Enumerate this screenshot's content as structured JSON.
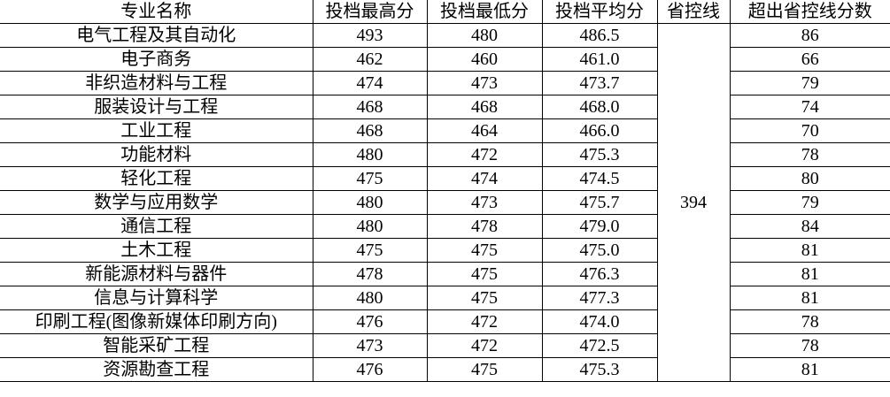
{
  "headers": [
    "专业名称",
    "投档最高分",
    "投档最低分",
    "投档平均分",
    "省控线",
    "超出省控线分数"
  ],
  "province_line": "394",
  "rows": [
    {
      "major": "电气工程及其自动化",
      "max": "493",
      "min": "480",
      "avg": "486.5",
      "over": "86"
    },
    {
      "major": "电子商务",
      "max": "462",
      "min": "460",
      "avg": "461.0",
      "over": "66"
    },
    {
      "major": "非织造材料与工程",
      "max": "474",
      "min": "473",
      "avg": "473.7",
      "over": "79"
    },
    {
      "major": "服装设计与工程",
      "max": "468",
      "min": "468",
      "avg": "468.0",
      "over": "74"
    },
    {
      "major": "工业工程",
      "max": "468",
      "min": "464",
      "avg": "466.0",
      "over": "70"
    },
    {
      "major": "功能材料",
      "max": "480",
      "min": "472",
      "avg": "475.3",
      "over": "78"
    },
    {
      "major": "轻化工程",
      "max": "475",
      "min": "474",
      "avg": "474.5",
      "over": "80"
    },
    {
      "major": "数学与应用数学",
      "max": "480",
      "min": "473",
      "avg": "475.7",
      "over": "79"
    },
    {
      "major": "通信工程",
      "max": "480",
      "min": "478",
      "avg": "479.0",
      "over": "84"
    },
    {
      "major": "土木工程",
      "max": "475",
      "min": "475",
      "avg": "475.0",
      "over": "81"
    },
    {
      "major": "新能源材料与器件",
      "max": "478",
      "min": "475",
      "avg": "476.3",
      "over": "81"
    },
    {
      "major": "信息与计算科学",
      "max": "480",
      "min": "475",
      "avg": "477.3",
      "over": "81"
    },
    {
      "major": "印刷工程(图像新媒体印刷方向)",
      "max": "476",
      "min": "472",
      "avg": "474.0",
      "over": "78"
    },
    {
      "major": "智能采矿工程",
      "max": "473",
      "min": "472",
      "avg": "472.5",
      "over": "78"
    },
    {
      "major": "资源勘查工程",
      "max": "476",
      "min": "475",
      "avg": "475.3",
      "over": "81"
    }
  ]
}
